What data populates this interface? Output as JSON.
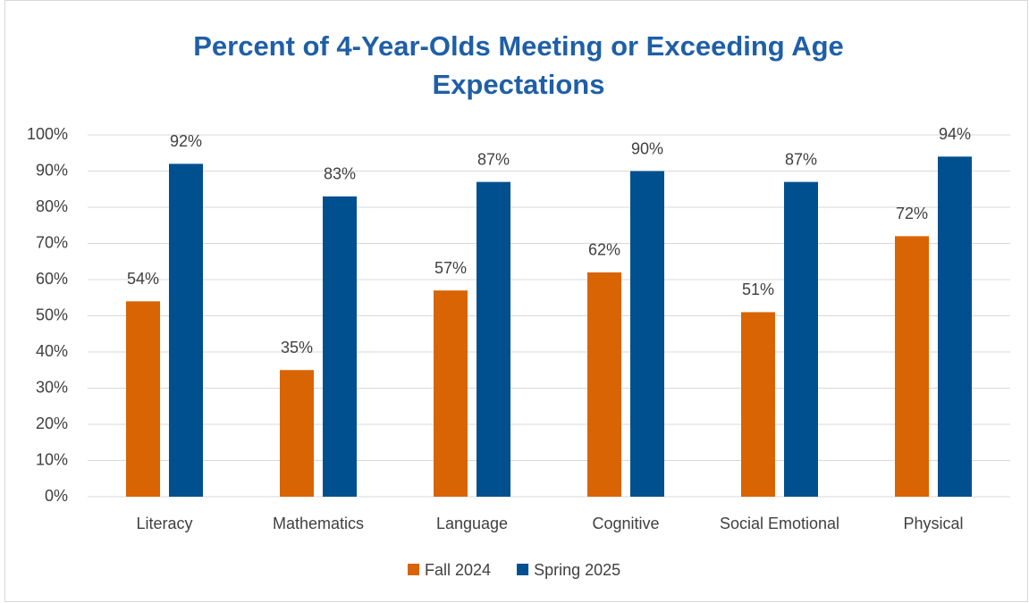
{
  "chart_data": {
    "type": "bar",
    "title": "Percent of 4-Year-Olds Meeting or Exceeding Age Expectations",
    "categories": [
      "Literacy",
      "Mathematics",
      "Language",
      "Cognitive",
      "Social Emotional",
      "Physical"
    ],
    "series": [
      {
        "name": "Fall 2024",
        "color": "#d96403",
        "values": [
          54,
          35,
          57,
          62,
          51,
          72
        ],
        "value_labels": [
          "54%",
          "35%",
          "57%",
          "62%",
          "51%",
          "72%"
        ]
      },
      {
        "name": "Spring 2025",
        "color": "#00508f",
        "values": [
          92,
          83,
          87,
          90,
          87,
          94
        ],
        "value_labels": [
          "92%",
          "83%",
          "87%",
          "90%",
          "87%",
          "94%"
        ]
      }
    ],
    "ylim": [
      0,
      100
    ],
    "yticks": [
      {
        "value": 0,
        "label": "0%"
      },
      {
        "value": 10,
        "label": "10%"
      },
      {
        "value": 20,
        "label": "20%"
      },
      {
        "value": 30,
        "label": "30%"
      },
      {
        "value": 40,
        "label": "40%"
      },
      {
        "value": 50,
        "label": "50%"
      },
      {
        "value": 60,
        "label": "60%"
      },
      {
        "value": 70,
        "label": "70%"
      },
      {
        "value": 80,
        "label": "80%"
      },
      {
        "value": 90,
        "label": "90%"
      },
      {
        "value": 100,
        "label": "100%"
      }
    ],
    "grid": true,
    "legend": "bottom"
  }
}
